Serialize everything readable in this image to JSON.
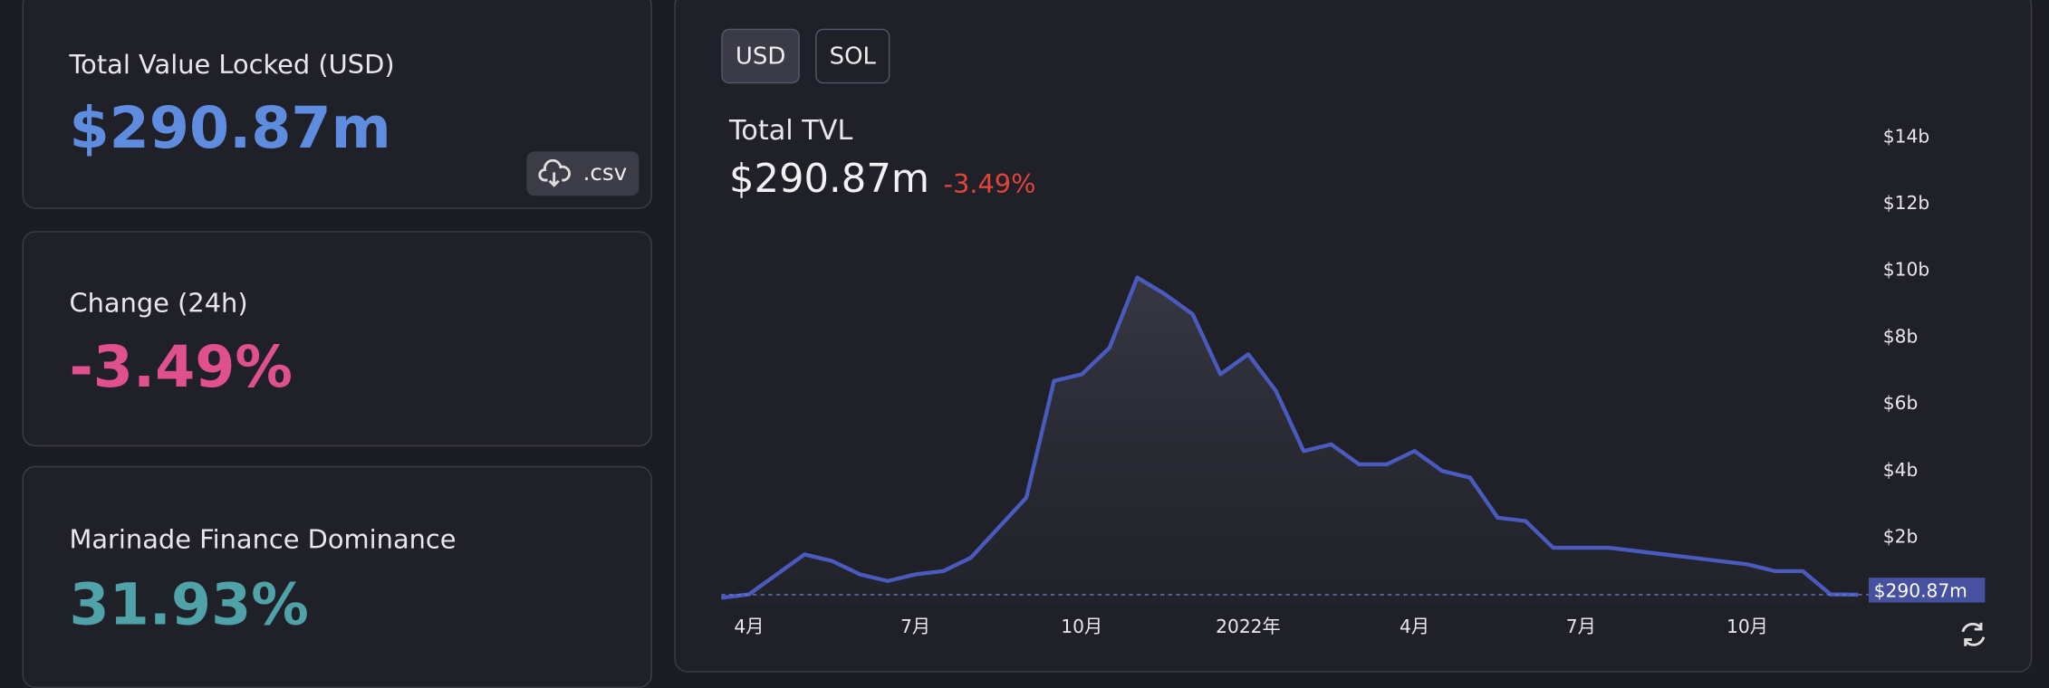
{
  "cards": [
    {
      "label": "Total Value Locked (USD)",
      "value": "$290.87m"
    },
    {
      "label": "Change (24h)",
      "value": "-3.49%"
    },
    {
      "label": "Marinade Finance Dominance",
      "value": "31.93%"
    }
  ],
  "csv_button": ".csv",
  "currency_toggle": [
    "USD",
    "SOL"
  ],
  "chart_data": {
    "type": "area",
    "title": "Total TVL",
    "value": "$290.87m",
    "change": "-3.49%",
    "categories": [
      null,
      "4月",
      null,
      null,
      null,
      null,
      null,
      "7月",
      null,
      null,
      null,
      null,
      null,
      "10月",
      null,
      null,
      null,
      null,
      null,
      "2022年",
      null,
      null,
      null,
      null,
      null,
      "4月",
      null,
      null,
      null,
      null,
      null,
      "7月",
      null,
      null,
      null,
      null,
      null,
      "10月",
      null,
      null,
      null,
      null
    ],
    "values": [
      0.2,
      0.3,
      0.9,
      1.5,
      1.3,
      0.9,
      0.7,
      0.9,
      1.0,
      1.4,
      2.3,
      3.2,
      6.7,
      6.9,
      7.7,
      9.8,
      9.3,
      8.7,
      6.9,
      7.5,
      6.4,
      4.6,
      4.8,
      4.2,
      4.2,
      4.6,
      4.0,
      3.8,
      2.6,
      2.5,
      1.7,
      1.7,
      1.7,
      1.6,
      1.5,
      1.4,
      1.3,
      1.2,
      1.0,
      1.0,
      0.3,
      0.29087
    ],
    "color": "#4a5bc0",
    "current_value": {
      "value": 0.29087,
      "label": "$290.87m"
    },
    "ylim": [
      0,
      14.6
    ],
    "yticks": [
      {
        "value": 2,
        "label": "$2b"
      },
      {
        "value": 4,
        "label": "$4b"
      },
      {
        "value": 6,
        "label": "$6b"
      },
      {
        "value": 8,
        "label": "$8b"
      },
      {
        "value": 10,
        "label": "$10b"
      },
      {
        "value": 12,
        "label": "$12b"
      },
      {
        "value": 14,
        "label": "$14b"
      }
    ],
    "grid": false
  }
}
